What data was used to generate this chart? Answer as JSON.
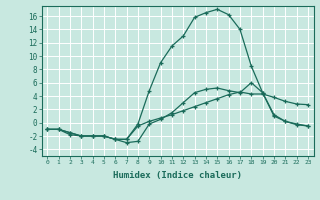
{
  "title": "",
  "xlabel": "Humidex (Indice chaleur)",
  "background_color": "#c8e8e0",
  "grid_color": "#b0d8d0",
  "line_color": "#1a6b5a",
  "x_ticks": [
    0,
    1,
    2,
    3,
    4,
    5,
    6,
    7,
    8,
    9,
    10,
    11,
    12,
    13,
    14,
    15,
    16,
    17,
    18,
    19,
    20,
    21,
    22,
    23
  ],
  "y_ticks": [
    -4,
    -2,
    0,
    2,
    4,
    6,
    8,
    10,
    12,
    14,
    16
  ],
  "ylim": [
    -5,
    17.5
  ],
  "xlim": [
    -0.5,
    23.5
  ],
  "series": [
    {
      "x": [
        0,
        1,
        2,
        3,
        4,
        5,
        6,
        7,
        8,
        9,
        10,
        11,
        12,
        13,
        14,
        15,
        16,
        17,
        18,
        19,
        20,
        21,
        22,
        23
      ],
      "y": [
        -1,
        -1,
        -1.5,
        -2,
        -2,
        -2,
        -2.5,
        -2.5,
        -0.5,
        0.2,
        0.7,
        1.2,
        1.8,
        2.4,
        3.0,
        3.6,
        4.2,
        4.6,
        4.3,
        4.3,
        3.8,
        3.2,
        2.8,
        2.7
      ],
      "marker": "+"
    },
    {
      "x": [
        0,
        1,
        2,
        3,
        4,
        5,
        6,
        7,
        8,
        9,
        10,
        11,
        12,
        13,
        14,
        15,
        16,
        17,
        18,
        19,
        20,
        21,
        22,
        23
      ],
      "y": [
        -1,
        -1,
        -1.8,
        -2,
        -2,
        -2,
        -2.5,
        -2.5,
        -0.2,
        4.8,
        9.0,
        11.5,
        13.0,
        15.8,
        16.5,
        17.0,
        16.2,
        14.0,
        8.5,
        4.5,
        1.0,
        0.2,
        -0.2,
        -0.5
      ],
      "marker": "+"
    },
    {
      "x": [
        0,
        1,
        2,
        3,
        4,
        5,
        6,
        7,
        8,
        9,
        10,
        11,
        12,
        13,
        14,
        15,
        16,
        17,
        18,
        19,
        20,
        21,
        22,
        23
      ],
      "y": [
        -1,
        -1,
        -1.5,
        -2,
        -2,
        -2,
        -2.5,
        -3.0,
        -2.8,
        -0.2,
        0.5,
        1.5,
        3.0,
        4.5,
        5.0,
        5.2,
        4.8,
        4.5,
        6.0,
        4.5,
        1.2,
        0.2,
        -0.3,
        -0.5
      ],
      "marker": "+"
    }
  ]
}
